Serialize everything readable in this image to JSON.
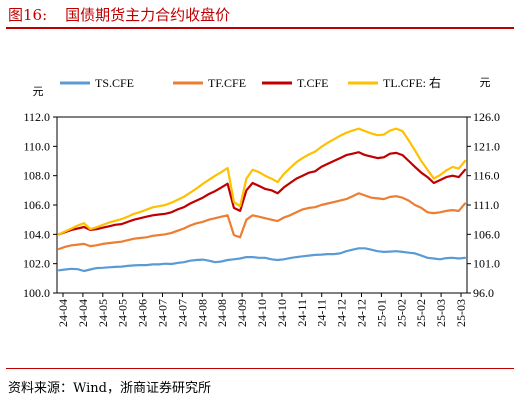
{
  "figure": {
    "number": "图16:",
    "title": "国债期货主力合约收盘价",
    "source": "资料来源：Wind，浙商证券研究所"
  },
  "chart_data": {
    "type": "line",
    "x_ticks": [
      "24-04",
      "24-04",
      "24-05",
      "24-05",
      "24-06",
      "24-07",
      "24-07",
      "24-08",
      "24-08",
      "24-09",
      "24-10",
      "24-10",
      "24-11",
      "24-11",
      "24-12",
      "24-12",
      "25-01",
      "25-02",
      "25-02",
      "25-03",
      "25-03"
    ],
    "ylabel_left": "元",
    "ylabel_right": "元",
    "ylim_left": [
      100.0,
      112.0
    ],
    "yticks_left": [
      "100.0",
      "102.0",
      "104.0",
      "106.0",
      "108.0",
      "110.0",
      "112.0"
    ],
    "ylim_right": [
      96.0,
      126.0
    ],
    "yticks_right": [
      "96.0",
      "101.0",
      "106.0",
      "111.0",
      "116.0",
      "121.0",
      "126.0"
    ],
    "legend": {
      "position": "top"
    },
    "series": [
      {
        "name": "TS.CFE",
        "axis": "left",
        "color": "#5b9bd5",
        "values": [
          101.55,
          101.6,
          101.65,
          101.62,
          101.5,
          101.6,
          101.7,
          101.72,
          101.75,
          101.78,
          101.8,
          101.85,
          101.88,
          101.9,
          101.9,
          101.95,
          101.95,
          102.0,
          101.98,
          102.05,
          102.1,
          102.2,
          102.25,
          102.28,
          102.2,
          102.1,
          102.15,
          102.25,
          102.3,
          102.35,
          102.45,
          102.45,
          102.4,
          102.4,
          102.3,
          102.25,
          102.3,
          102.38,
          102.45,
          102.5,
          102.55,
          102.6,
          102.62,
          102.65,
          102.65,
          102.7,
          102.85,
          102.95,
          103.05,
          103.05,
          102.95,
          102.85,
          102.8,
          102.82,
          102.85,
          102.8,
          102.75,
          102.7,
          102.55,
          102.4,
          102.35,
          102.3,
          102.38,
          102.4,
          102.35,
          102.4
        ]
      },
      {
        "name": "TF.CFE",
        "axis": "left",
        "color": "#ed7d31",
        "values": [
          103.0,
          103.15,
          103.25,
          103.3,
          103.35,
          103.2,
          103.25,
          103.35,
          103.4,
          103.45,
          103.5,
          103.6,
          103.7,
          103.75,
          103.8,
          103.9,
          103.95,
          104.0,
          104.1,
          104.25,
          104.4,
          104.6,
          104.75,
          104.85,
          105.0,
          105.1,
          105.2,
          105.3,
          103.95,
          103.8,
          105.0,
          105.3,
          105.2,
          105.1,
          105.0,
          104.9,
          105.15,
          105.3,
          105.5,
          105.7,
          105.8,
          105.85,
          106.0,
          106.1,
          106.2,
          106.3,
          106.4,
          106.6,
          106.8,
          106.65,
          106.5,
          106.45,
          106.4,
          106.55,
          106.6,
          106.5,
          106.3,
          106.0,
          105.8,
          105.5,
          105.45,
          105.5,
          105.6,
          105.65,
          105.6,
          106.1
        ]
      },
      {
        "name": "T.CFE",
        "axis": "left",
        "color": "#c00000",
        "values": [
          104.0,
          104.15,
          104.3,
          104.4,
          104.5,
          104.3,
          104.35,
          104.45,
          104.55,
          104.65,
          104.7,
          104.85,
          105.0,
          105.1,
          105.2,
          105.3,
          105.35,
          105.4,
          105.5,
          105.7,
          105.85,
          106.1,
          106.3,
          106.5,
          106.75,
          106.95,
          107.2,
          107.45,
          105.8,
          105.6,
          107.0,
          107.5,
          107.3,
          107.1,
          107.0,
          106.8,
          107.2,
          107.5,
          107.8,
          108.0,
          108.2,
          108.3,
          108.6,
          108.8,
          109.0,
          109.2,
          109.4,
          109.5,
          109.6,
          109.4,
          109.3,
          109.2,
          109.25,
          109.5,
          109.55,
          109.4,
          109.0,
          108.6,
          108.2,
          107.9,
          107.5,
          107.7,
          107.9,
          108.0,
          107.9,
          108.4
        ]
      },
      {
        "name": "TL.CFE: 右",
        "axis": "right",
        "color": "#ffc000",
        "values": [
          106.0,
          106.5,
          107.0,
          107.5,
          107.9,
          106.9,
          107.2,
          107.6,
          108.0,
          108.3,
          108.6,
          109.0,
          109.5,
          109.8,
          110.2,
          110.6,
          110.8,
          111.0,
          111.4,
          111.9,
          112.4,
          113.1,
          113.8,
          114.6,
          115.3,
          116.0,
          116.6,
          117.3,
          111.5,
          110.8,
          115.5,
          117.0,
          116.6,
          116.0,
          115.5,
          114.9,
          116.3,
          117.3,
          118.3,
          119.0,
          119.6,
          120.1,
          120.9,
          121.6,
          122.2,
          122.8,
          123.3,
          123.7,
          124.0,
          123.6,
          123.2,
          122.9,
          123.0,
          123.7,
          124.0,
          123.6,
          122.0,
          120.3,
          118.5,
          117.0,
          115.5,
          116.1,
          116.9,
          117.5,
          117.2,
          118.5
        ]
      }
    ]
  }
}
